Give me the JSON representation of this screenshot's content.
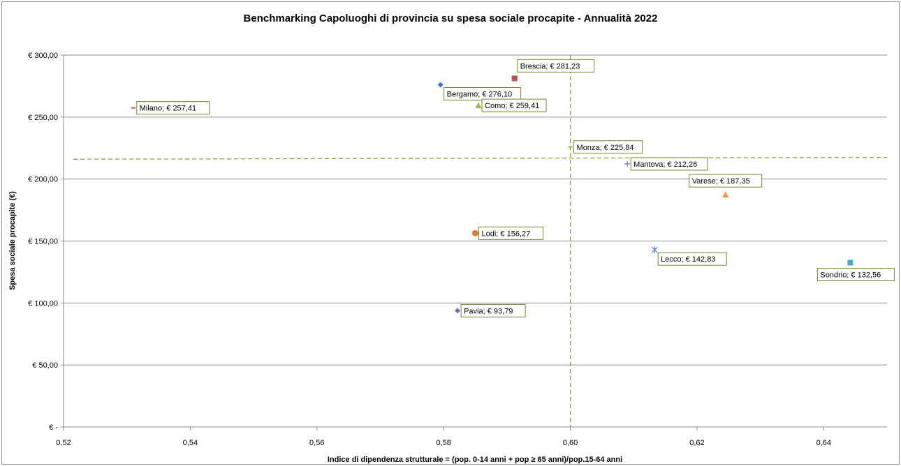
{
  "chart_data": {
    "type": "scatter",
    "title": "Benchmarking Capoluoghi di provincia su spesa sociale procapite - Annualità 2022",
    "xlabel": "Indice di dipendenza strutturale = (pop. 0-14 anni + pop ≥ 65 anni)/pop.15-64 anni",
    "ylabel": "Spesa sociale procapite (€)",
    "xlim": [
      0.52,
      0.65
    ],
    "ylim": [
      0,
      300
    ],
    "x_ticks": [
      "0,52",
      "0,54",
      "0,56",
      "0,58",
      "0,60",
      "0,62",
      "0,64"
    ],
    "x_tick_values": [
      0.52,
      0.54,
      0.56,
      0.58,
      0.6,
      0.62,
      0.64
    ],
    "y_ticks": [
      "€ -",
      "€ 50,00",
      "€ 100,00",
      "€ 150,00",
      "€ 200,00",
      "€ 250,00",
      "€ 300,00"
    ],
    "y_tick_values": [
      0,
      50,
      100,
      150,
      200,
      250,
      300
    ],
    "grid": "horizontal",
    "reference_lines": {
      "x": 0.6,
      "y_start": 216,
      "y_end": 217.5,
      "color": "#7a9a32"
    },
    "points": [
      {
        "label": "Bergamo; € 276,10",
        "x": 0.5795,
        "y": 276.1,
        "marker": "diamond",
        "color": "#4472c4",
        "label_pos": "below-right"
      },
      {
        "label": "Brescia; € 281,23",
        "x": 0.5912,
        "y": 281.23,
        "marker": "square",
        "color": "#c0504d",
        "label_pos": "above-right"
      },
      {
        "label": "Como; € 259,41",
        "x": 0.5855,
        "y": 259.41,
        "marker": "triangle",
        "color": "#9bbb59",
        "label_pos": "right"
      },
      {
        "label": "Milano; € 257,41",
        "x": 0.531,
        "y": 257.41,
        "marker": "dash",
        "color": "#c0504d",
        "label_pos": "right"
      },
      {
        "label": "Monza; € 225,84",
        "x": 0.6,
        "y": 225.84,
        "marker": "dash",
        "color": "#9bbb59",
        "label_pos": "right"
      },
      {
        "label": "Mantova; € 212,26",
        "x": 0.609,
        "y": 212.26,
        "marker": "plus",
        "color": "#4f81bd",
        "label_pos": "right"
      },
      {
        "label": "Varese; € 187,35",
        "x": 0.6245,
        "y": 187.35,
        "marker": "triangle",
        "color": "#f79646",
        "label_pos": "above"
      },
      {
        "label": "Lodi; € 156,27",
        "x": 0.585,
        "y": 156.27,
        "marker": "circle",
        "color": "#e07b39",
        "label_pos": "right"
      },
      {
        "label": "Lecco; € 142,83",
        "x": 0.6133,
        "y": 142.83,
        "marker": "star",
        "color": "#4f81bd",
        "label_pos": "below-right"
      },
      {
        "label": "Sondrio; € 132,56",
        "x": 0.6442,
        "y": 132.56,
        "marker": "square",
        "color": "#4bacc6",
        "label_pos": "below"
      },
      {
        "label": "Pavia; € 93,79",
        "x": 0.5822,
        "y": 93.79,
        "marker": "diamond",
        "color": "#8064a2",
        "label_pos": "right"
      }
    ],
    "label_border_color": "#6b8e23"
  }
}
